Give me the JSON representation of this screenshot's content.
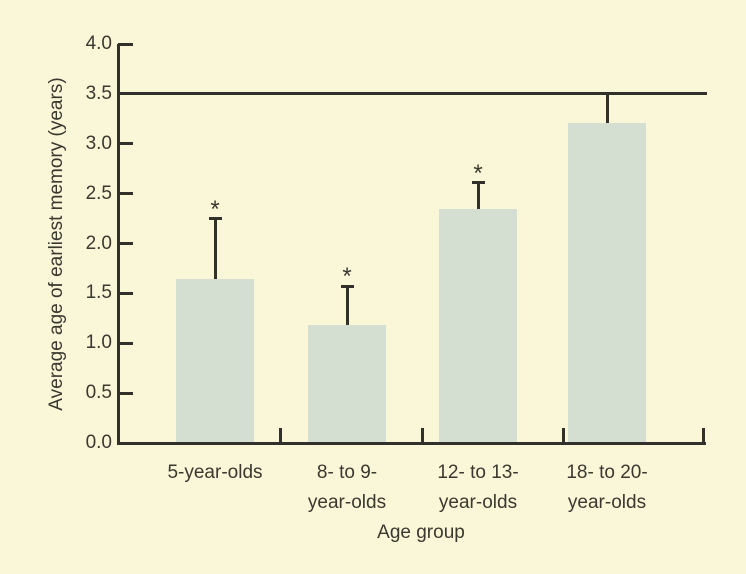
{
  "figure": {
    "y_axis_label": "Average age of earliest memory (years)",
    "x_axis_label": "Age group",
    "significance_marker": "*",
    "background_color": "#faf6d8",
    "bar_color": "#d4dfd2",
    "line_color": "#31302a",
    "text_color": "#3a392f"
  },
  "chart_data": {
    "type": "bar",
    "title": "",
    "xlabel": "Age group",
    "ylabel": "Average age of earliest memory (years)",
    "categories": [
      "5-year-olds",
      "8- to 9-year-olds",
      "12- to 13-year-olds",
      "18- to 20-year-olds"
    ],
    "category_label_lines": [
      [
        "5-year-olds"
      ],
      [
        "8- to 9-",
        "year-olds"
      ],
      [
        "12- to 13-",
        "year-olds"
      ],
      [
        "18- to 20-",
        "year-olds"
      ]
    ],
    "values": [
      1.64,
      1.18,
      2.35,
      3.21
    ],
    "error_bar_tops": [
      2.25,
      1.57,
      2.61,
      3.5
    ],
    "significant": [
      true,
      true,
      true,
      false
    ],
    "reference_line_y": 3.5,
    "ylim": [
      0,
      4
    ],
    "ytick_step": 0.5,
    "ytick_labels": [
      "0.0",
      "0.5",
      "1.0",
      "1.5",
      "2.0",
      "2.5",
      "3.0",
      "3.5",
      "4.0"
    ],
    "grid": false,
    "legend": null
  }
}
